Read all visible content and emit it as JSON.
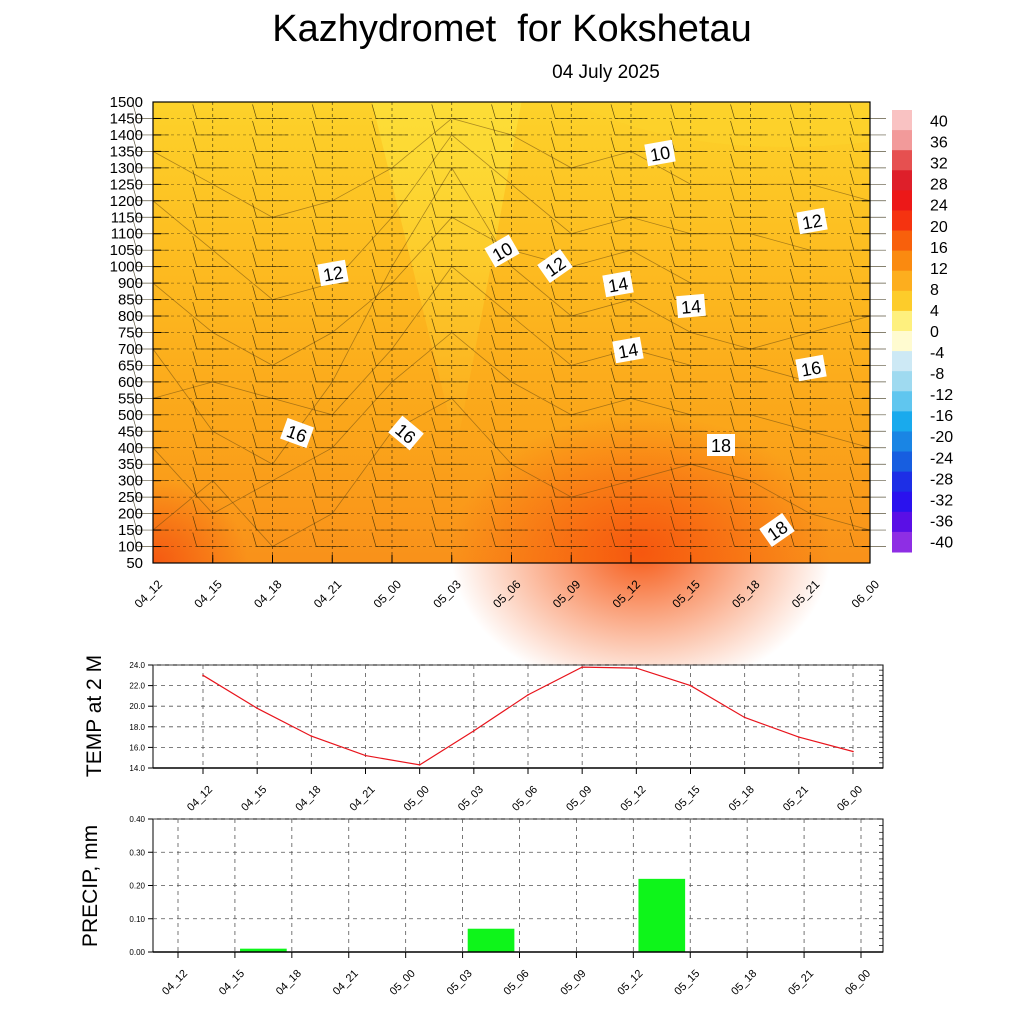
{
  "title": "Kazhydromet  for Kokshetau",
  "date": "04 July 2025",
  "chart_data": [
    {
      "type": "heatmap",
      "description_role": "temperature cross-section with wind barbs",
      "x_categories": [
        "04_12",
        "04_15",
        "04_18",
        "04_21",
        "05_00",
        "05_03",
        "05_06",
        "05_09",
        "05_12",
        "05_15",
        "05_18",
        "05_21",
        "06_00"
      ],
      "y_ticks": [
        1500,
        1450,
        1400,
        1350,
        1300,
        1250,
        1200,
        1150,
        1100,
        1050,
        1000,
        900,
        850,
        800,
        750,
        700,
        650,
        600,
        550,
        500,
        450,
        400,
        350,
        300,
        250,
        200,
        150,
        100,
        50
      ],
      "colorbar": {
        "ticks": [
          "40",
          "36",
          "32",
          "28",
          "24",
          "20",
          "16",
          "12",
          "8",
          "4",
          "0",
          "-4",
          "-8",
          "-12",
          "-16",
          "-20",
          "-24",
          "-28",
          "-32",
          "-36",
          "-40"
        ],
        "colors": [
          "#f9c2c2",
          "#f29a9a",
          "#e65050",
          "#de1f2a",
          "#ec1818",
          "#f53310",
          "#f8600c",
          "#fa8a10",
          "#fdae1e",
          "#fdcc2a",
          "#fef07e",
          "#fffbd0",
          "#cde9f5",
          "#9fdaf0",
          "#60c6ef",
          "#19aaed",
          "#1a85e4",
          "#175ee0",
          "#1d2fe6",
          "#2a12ee",
          "#5a0fe6",
          "#8e2ee4"
        ]
      },
      "contour_labels": [
        "10",
        "10",
        "12",
        "12",
        "12",
        "14",
        "14",
        "14",
        "16",
        "16",
        "16",
        "18",
        "18"
      ]
    },
    {
      "type": "line",
      "ylabel": "TEMP at 2 M",
      "categories": [
        "04_12",
        "04_15",
        "04_18",
        "04_21",
        "05_00",
        "05_03",
        "05_06",
        "05_09",
        "05_12",
        "05_15",
        "05_18",
        "05_21",
        "06_00"
      ],
      "values": [
        23.0,
        19.8,
        17.1,
        15.2,
        14.3,
        17.6,
        21.1,
        23.8,
        23.7,
        22.0,
        18.9,
        17.0,
        15.6
      ],
      "yticks": [
        "24.0",
        "22.0",
        "20.0",
        "18.0",
        "16.0",
        "14.0"
      ],
      "ylim": [
        14.0,
        24.0
      ],
      "color": "#e8141c",
      "grid": true
    },
    {
      "type": "bar",
      "ylabel": "PRECIP, mm",
      "categories": [
        "04_12",
        "04_15",
        "04_18",
        "04_21",
        "05_00",
        "05_03",
        "05_06",
        "05_09",
        "05_12",
        "05_15",
        "05_18",
        "05_21",
        "06_00"
      ],
      "values": [
        0,
        0.01,
        0,
        0,
        0,
        0.07,
        0,
        0,
        0.22,
        0,
        0,
        0,
        0
      ],
      "yticks": [
        "0.40",
        "0.30",
        "0.20",
        "0.10",
        "0.00"
      ],
      "ylim": [
        0,
        0.4
      ],
      "color": "#0ef51a",
      "grid": true
    }
  ]
}
